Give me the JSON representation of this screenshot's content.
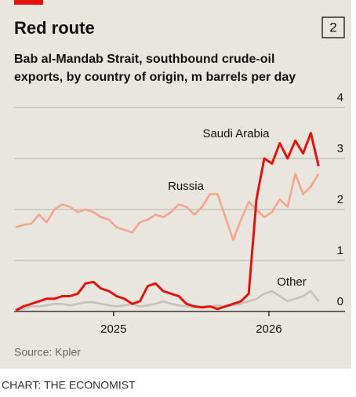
{
  "chart_data": {
    "type": "line",
    "title": "Red route",
    "badge": "2",
    "subtitle": [
      "Bab al-Mandab Strait, southbound crude-oil",
      "exports, by country of origin, m barrels per day"
    ],
    "source": "Source: Kpler",
    "footer": "CHART: THE ECONOMIST",
    "x": [
      2024.37,
      2024.42,
      2024.47,
      2024.52,
      2024.57,
      2024.62,
      2024.67,
      2024.72,
      2024.77,
      2024.82,
      2024.87,
      2024.92,
      2024.97,
      2025.02,
      2025.07,
      2025.12,
      2025.17,
      2025.22,
      2025.27,
      2025.32,
      2025.37,
      2025.42,
      2025.47,
      2025.52,
      2025.57,
      2025.62,
      2025.67,
      2025.72,
      2025.77,
      2025.82,
      2025.87,
      2025.92,
      2025.97,
      2026.02,
      2026.07,
      2026.12,
      2026.17,
      2026.22,
      2026.27,
      2026.32
    ],
    "series": [
      {
        "name": "Russia",
        "color": "#f4a58a",
        "values": [
          1.65,
          1.7,
          1.72,
          1.9,
          1.75,
          2.0,
          2.1,
          2.05,
          1.95,
          2.0,
          1.95,
          1.85,
          1.8,
          1.65,
          1.6,
          1.55,
          1.75,
          1.8,
          1.9,
          1.85,
          1.95,
          2.1,
          2.05,
          1.9,
          2.05,
          2.3,
          2.3,
          1.85,
          1.4,
          1.8,
          2.15,
          2.0,
          1.85,
          1.95,
          2.2,
          2.05,
          2.7,
          2.3,
          2.45,
          2.7
        ]
      },
      {
        "name": "Other",
        "color": "#c4c2ba",
        "values": [
          0.02,
          0.05,
          0.1,
          0.1,
          0.12,
          0.15,
          0.15,
          0.12,
          0.15,
          0.18,
          0.18,
          0.15,
          0.12,
          0.1,
          0.12,
          0.15,
          0.1,
          0.12,
          0.15,
          0.2,
          0.15,
          0.12,
          0.1,
          0.08,
          0.1,
          0.1,
          0.12,
          0.1,
          0.12,
          0.15,
          0.2,
          0.25,
          0.35,
          0.4,
          0.3,
          0.2,
          0.25,
          0.3,
          0.4,
          0.2
        ]
      },
      {
        "name": "Saudi Arabia",
        "color": "#e3120b",
        "values": [
          0.02,
          0.1,
          0.15,
          0.2,
          0.25,
          0.25,
          0.3,
          0.3,
          0.35,
          0.55,
          0.58,
          0.45,
          0.4,
          0.3,
          0.25,
          0.15,
          0.2,
          0.5,
          0.55,
          0.4,
          0.35,
          0.3,
          0.15,
          0.1,
          0.08,
          0.1,
          0.05,
          0.1,
          0.15,
          0.2,
          0.35,
          2.2,
          3.0,
          2.9,
          3.3,
          3.0,
          3.35,
          3.1,
          3.5,
          2.85
        ]
      }
    ],
    "xlim": [
      2024.36,
      2026.49
    ],
    "xticks": [
      2025,
      2026
    ],
    "ylim": [
      0,
      4
    ],
    "yticks": [
      0,
      1,
      2,
      3,
      4
    ],
    "grid": true
  }
}
